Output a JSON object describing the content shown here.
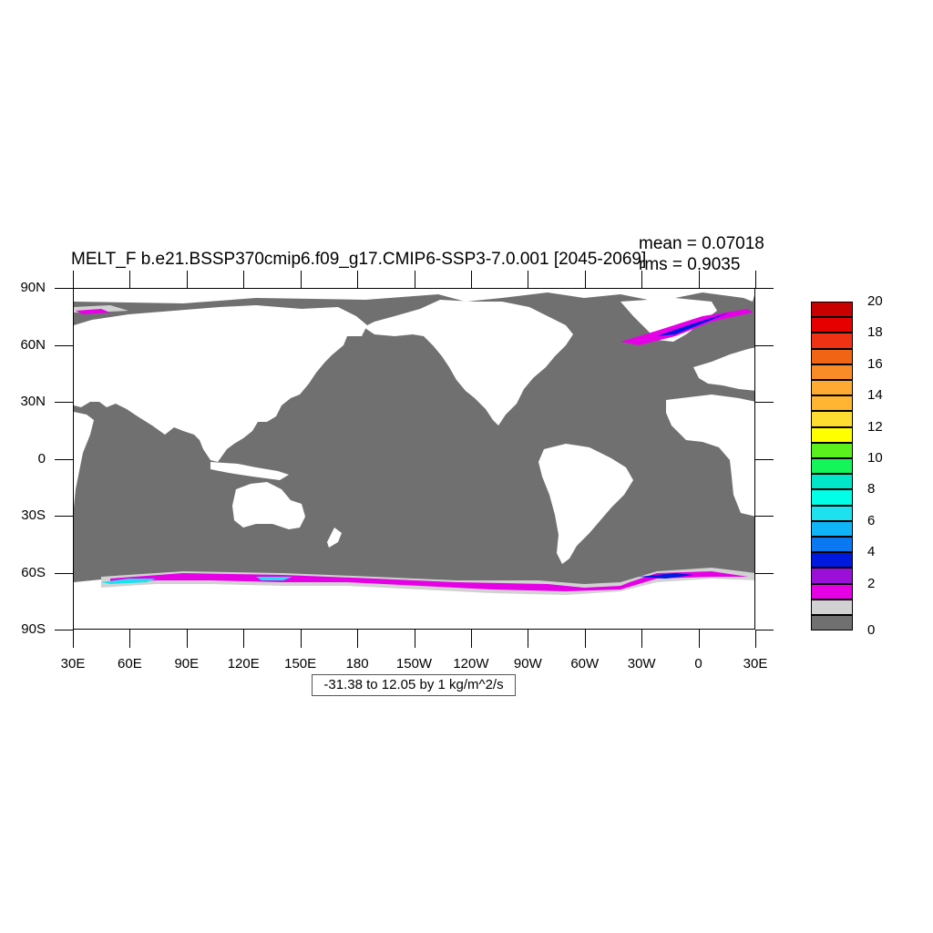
{
  "title": "MELT_F b.e21.BSSP370cmip6.f09_g17.CMIP6-SSP3-7.0.001 [2045-2069]",
  "stats": {
    "mean": "mean = 0.07018",
    "rms": "rms = 0.9035"
  },
  "map": {
    "projection": "cylindrical equidistant",
    "lon_range": [
      30,
      390
    ],
    "lat_range": [
      -90,
      90
    ],
    "ocean_color": "#707070",
    "land_color": "#ffffff",
    "y_ticks": [
      "90N",
      "60N",
      "30N",
      "0",
      "30S",
      "60S",
      "90S"
    ],
    "x_ticks": [
      "30E",
      "60E",
      "90E",
      "120E",
      "150E",
      "180",
      "150W",
      "120W",
      "90W",
      "60W",
      "30W",
      "0",
      "30E"
    ]
  },
  "info_label": "-31.38 to 12.05 by 1 kg/m^2/s",
  "colorbar": {
    "colors": [
      "#707070",
      "#d2d2d2",
      "#e600e6",
      "#9b10d8",
      "#0019e0",
      "#0a78f0",
      "#10b4f8",
      "#1ee1f0",
      "#00ffe6",
      "#00e6c8",
      "#14f55a",
      "#5af01e",
      "#ffff00",
      "#ffdc30",
      "#ffb432",
      "#ffaa32",
      "#fa8c28",
      "#f06414",
      "#f03214",
      "#e60000",
      "#c80000"
    ],
    "labels": [
      "0",
      "2",
      "4",
      "6",
      "8",
      "10",
      "12",
      "14",
      "16",
      "18",
      "20"
    ]
  }
}
